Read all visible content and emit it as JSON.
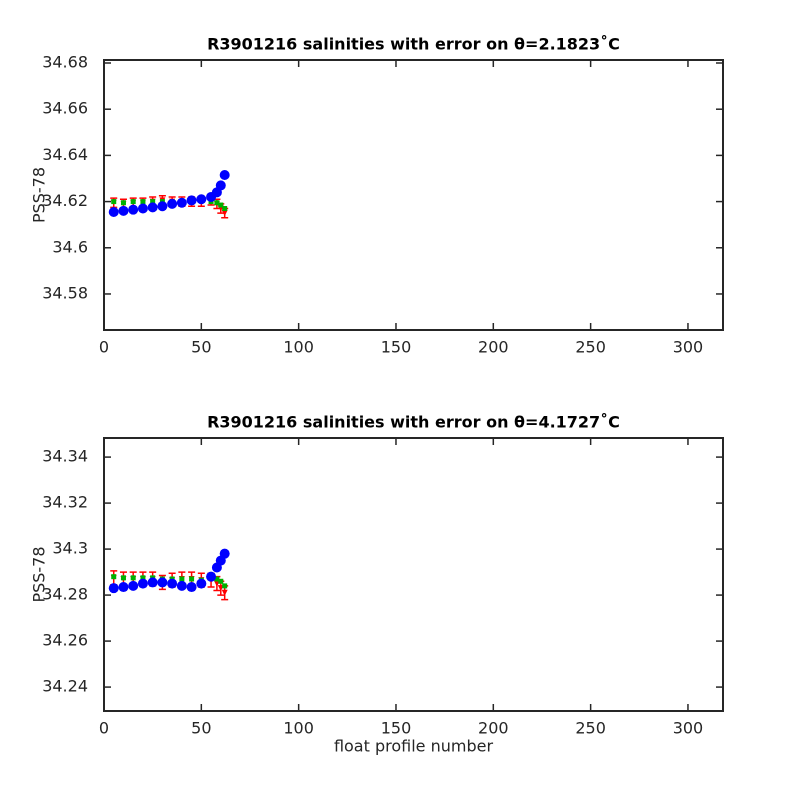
{
  "chart_data": [
    {
      "type": "errorbar",
      "title": "R3901216 salinities with error on θ=2.1823˚C",
      "ylabel": "PSS-78",
      "x": [
        5,
        10,
        15,
        20,
        25,
        30,
        35,
        40,
        45,
        50,
        55,
        58,
        60,
        62
      ],
      "series": [
        {
          "color": "#ff0000",
          "values": [
            34.6195,
            34.619,
            34.6195,
            34.6195,
            34.62,
            34.6205,
            34.62,
            34.62,
            34.62,
            34.62,
            34.6205,
            34.619,
            34.617,
            34.615
          ],
          "errors": [
            0.002,
            0.002,
            0.002,
            0.002,
            0.002,
            0.002,
            0.002,
            0.002,
            0.002,
            0.002,
            0.002,
            0.002,
            0.002,
            0.002
          ]
        },
        {
          "color": "#00b000",
          "values": [
            34.62,
            34.6195,
            34.62,
            34.62,
            34.62,
            34.62,
            34.62,
            34.62,
            34.62,
            34.6205,
            34.62,
            34.6195,
            34.6185,
            34.617
          ]
        },
        {
          "color": "#0000ff",
          "values": [
            34.6155,
            34.616,
            34.6165,
            34.617,
            34.6175,
            34.618,
            34.619,
            34.6195,
            34.6205,
            34.621,
            34.622,
            34.624,
            34.627,
            34.6315
          ]
        }
      ],
      "xlim": [
        0,
        318
      ],
      "xticks": [
        0,
        50,
        100,
        150,
        200,
        250,
        300
      ],
      "ylim": [
        34.5644,
        34.6813
      ],
      "yticks": [
        34.58,
        34.6,
        34.62,
        34.64,
        34.66,
        34.68
      ],
      "grid": false
    },
    {
      "type": "errorbar",
      "title": "R3901216 salinities with error on θ=4.1727˚C",
      "ylabel": "PSS-78",
      "xlabel": "float profile number",
      "x": [
        5,
        10,
        15,
        20,
        25,
        30,
        35,
        40,
        45,
        50,
        55,
        58,
        60,
        62
      ],
      "series": [
        {
          "color": "#ff0000",
          "values": [
            34.2875,
            34.287,
            34.287,
            34.287,
            34.287,
            34.2855,
            34.2865,
            34.287,
            34.287,
            34.2865,
            34.2865,
            34.285,
            34.283,
            34.281
          ],
          "errors": [
            0.003,
            0.003,
            0.003,
            0.003,
            0.003,
            0.003,
            0.003,
            0.003,
            0.003,
            0.003,
            0.003,
            0.003,
            0.003,
            0.003
          ]
        },
        {
          "color": "#00b000",
          "values": [
            34.288,
            34.2875,
            34.2875,
            34.2875,
            34.2875,
            34.287,
            34.287,
            34.287,
            34.287,
            34.2865,
            34.2875,
            34.287,
            34.286,
            34.284
          ]
        },
        {
          "color": "#0000ff",
          "values": [
            34.283,
            34.2835,
            34.284,
            34.285,
            34.2855,
            34.2855,
            34.285,
            34.284,
            34.2835,
            34.285,
            34.288,
            34.292,
            34.295,
            34.298
          ]
        }
      ],
      "xlim": [
        0,
        318
      ],
      "xticks": [
        0,
        50,
        100,
        150,
        200,
        250,
        300
      ],
      "ylim": [
        34.2296,
        34.3483
      ],
      "yticks": [
        34.24,
        34.26,
        34.28,
        34.3,
        34.32,
        34.34
      ],
      "grid": false
    }
  ]
}
